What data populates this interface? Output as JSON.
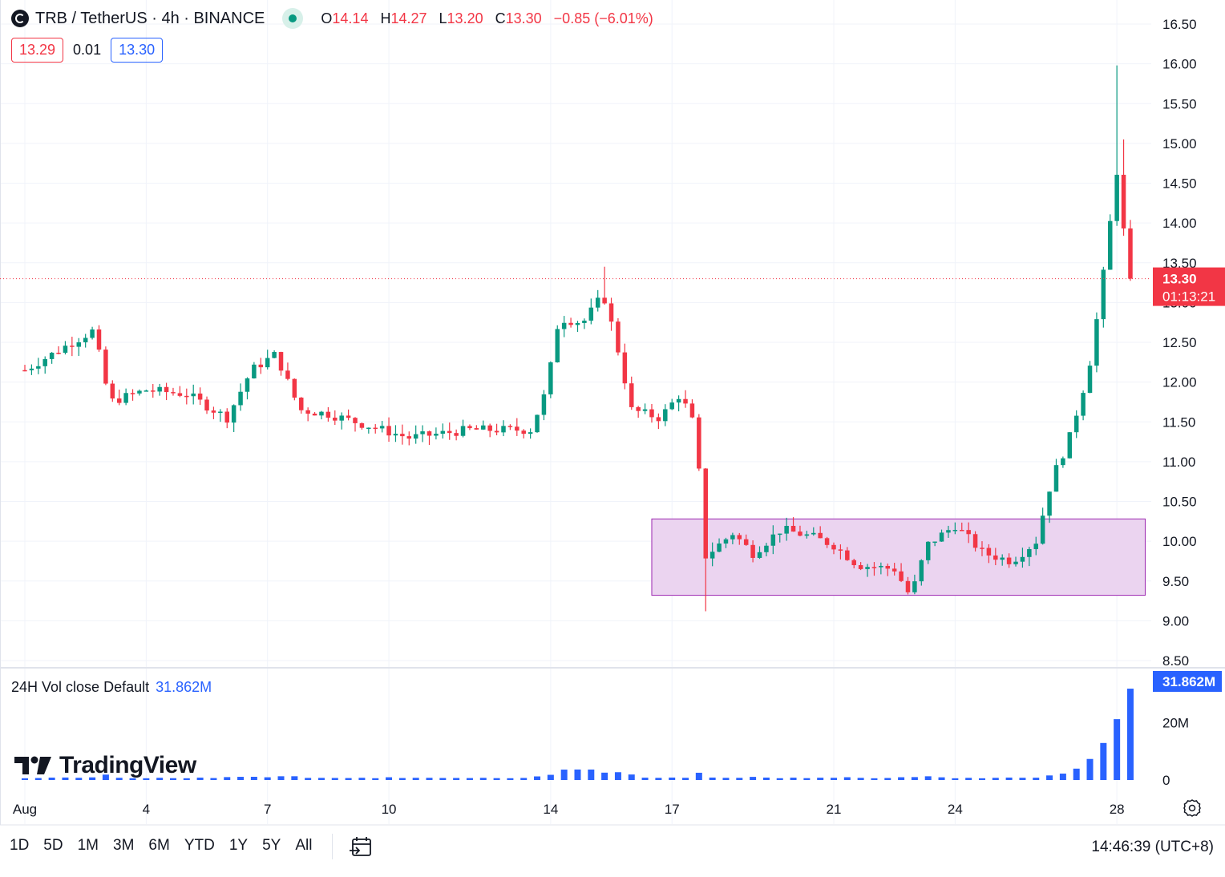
{
  "header": {
    "symbol": "TRB",
    "title": "TRB / TetherUS · 4h · BINANCE",
    "ohlc": {
      "o_label": "O",
      "o": "14.14",
      "h_label": "H",
      "h": "14.27",
      "l_label": "L",
      "l": "13.20",
      "c_label": "C",
      "c": "13.30",
      "change": "−0.85 (−6.01%)"
    },
    "bid": "13.29",
    "spread": "0.01",
    "ask": "13.30"
  },
  "price_label": {
    "price": "13.30",
    "countdown": "01:13:21"
  },
  "volume": {
    "legend": "24H Vol close Default",
    "value": "31.862M",
    "axis_ticks": [
      "20M",
      "0"
    ],
    "axis_values": [
      20,
      0
    ],
    "max": 33
  },
  "brand": {
    "name": "TradingView"
  },
  "toolbar": {
    "timeframes": [
      "1D",
      "5D",
      "1M",
      "3M",
      "6M",
      "YTD",
      "1Y",
      "5Y",
      "All"
    ],
    "clock": "14:46:39 (UTC+8)",
    "compare_icon": "calendar-range-icon",
    "settings_icon": "gear-icon"
  },
  "colors": {
    "up": "#089981",
    "down": "#f23645",
    "volume": "#2962ff",
    "zone_fill": "#ebd4f0",
    "zone_border": "#9c27b0",
    "grid": "#f0f3fa"
  },
  "chart_data": {
    "type": "candlestick",
    "title": "TRB / TetherUS · 4h · BINANCE",
    "y_ticks": [
      16.5,
      16.0,
      15.5,
      15.0,
      14.5,
      14.0,
      13.5,
      13.0,
      12.5,
      12.0,
      11.5,
      11.0,
      10.5,
      10.0,
      9.5,
      9.0,
      8.5
    ],
    "y_tick_labels": [
      "16.50",
      "16.00",
      "15.50",
      "15.00",
      "14.50",
      "14.00",
      "13.50",
      "13.00",
      "12.50",
      "12.00",
      "11.50",
      "11.00",
      "10.50",
      "10.00",
      "9.50",
      "9.00",
      "8.50"
    ],
    "ylim": [
      8.5,
      16.5
    ],
    "x_labels": [
      {
        "label": "Aug",
        "day": 1
      },
      {
        "label": "4",
        "day": 4
      },
      {
        "label": "7",
        "day": 7
      },
      {
        "label": "10",
        "day": 10
      },
      {
        "label": "14",
        "day": 14
      },
      {
        "label": "17",
        "day": 17
      },
      {
        "label": "21",
        "day": 21
      },
      {
        "label": "24",
        "day": 24
      },
      {
        "label": "28",
        "day": 28
      }
    ],
    "close_anchors": [
      [
        1,
        12.15
      ],
      [
        2,
        12.45
      ],
      [
        2.7,
        12.65
      ],
      [
        3.1,
        11.75
      ],
      [
        4,
        11.9
      ],
      [
        5,
        11.85
      ],
      [
        6,
        11.55
      ],
      [
        6.6,
        12.15
      ],
      [
        7.2,
        12.35
      ],
      [
        7.8,
        11.65
      ],
      [
        8.5,
        11.6
      ],
      [
        9.5,
        11.45
      ],
      [
        10.5,
        11.3
      ],
      [
        12,
        11.4
      ],
      [
        13.5,
        11.4
      ],
      [
        13.9,
        11.9
      ],
      [
        14.2,
        12.8
      ],
      [
        14.8,
        12.75
      ],
      [
        15.3,
        13.1
      ],
      [
        15.6,
        12.55
      ],
      [
        16,
        11.65
      ],
      [
        16.7,
        11.55
      ],
      [
        17.2,
        11.85
      ],
      [
        17.6,
        11.4
      ],
      [
        17.8,
        9.8
      ],
      [
        18.5,
        10.1
      ],
      [
        19,
        9.85
      ],
      [
        19.7,
        10.15
      ],
      [
        20.5,
        10.05
      ],
      [
        21,
        9.95
      ],
      [
        21.6,
        9.7
      ],
      [
        22.5,
        9.65
      ],
      [
        22.9,
        9.3
      ],
      [
        23.3,
        9.95
      ],
      [
        24,
        10.2
      ],
      [
        24.7,
        9.85
      ],
      [
        25.4,
        9.75
      ],
      [
        26,
        10.0
      ],
      [
        26.4,
        10.8
      ],
      [
        26.8,
        11.25
      ],
      [
        27.3,
        12.15
      ],
      [
        27.6,
        13.1
      ],
      [
        28,
        14.65
      ],
      [
        28.3,
        13.3
      ]
    ],
    "last_price": 13.3,
    "range_zone": {
      "x_start_day": 16.5,
      "x_end_day": 28.7,
      "y_low": 9.32,
      "y_high": 10.28
    }
  }
}
